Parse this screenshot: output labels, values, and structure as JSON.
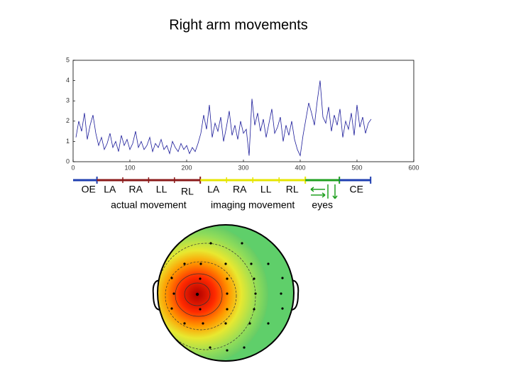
{
  "title": "Right arm movements",
  "chart_data": {
    "type": "line",
    "x": [
      5,
      10,
      15,
      20,
      25,
      30,
      35,
      40,
      45,
      50,
      55,
      60,
      65,
      70,
      75,
      80,
      85,
      90,
      95,
      100,
      105,
      110,
      115,
      120,
      125,
      130,
      135,
      140,
      145,
      150,
      155,
      160,
      165,
      170,
      175,
      180,
      185,
      190,
      195,
      200,
      205,
      210,
      215,
      220,
      225,
      230,
      235,
      240,
      245,
      250,
      255,
      260,
      265,
      270,
      275,
      280,
      285,
      290,
      295,
      300,
      305,
      310,
      315,
      320,
      325,
      330,
      335,
      340,
      345,
      350,
      355,
      360,
      365,
      370,
      375,
      380,
      385,
      390,
      395,
      400,
      405,
      410,
      415,
      420,
      425,
      430,
      435,
      440,
      445,
      450,
      455,
      460,
      465,
      470,
      475,
      480,
      485,
      490,
      495,
      500,
      505,
      510,
      515,
      520,
      525
    ],
    "series": [
      {
        "color": "#1a1a99",
        "values": [
          1.2,
          2.0,
          1.5,
          2.4,
          1.1,
          1.8,
          2.3,
          1.4,
          0.8,
          1.2,
          0.6,
          0.9,
          1.4,
          0.7,
          1.0,
          0.5,
          1.3,
          0.8,
          1.1,
          0.6,
          0.9,
          1.5,
          0.7,
          1.0,
          0.6,
          0.8,
          1.2,
          0.5,
          0.9,
          0.7,
          1.1,
          0.6,
          0.8,
          0.4,
          1.0,
          0.7,
          0.5,
          0.9,
          0.6,
          0.8,
          0.4,
          0.7,
          0.5,
          0.9,
          1.4,
          2.3,
          1.6,
          2.8,
          1.2,
          1.9,
          1.5,
          2.2,
          1.0,
          1.7,
          2.5,
          1.3,
          1.8,
          1.1,
          2.0,
          1.4,
          1.6,
          0.3,
          3.1,
          1.8,
          2.4,
          1.5,
          2.1,
          1.2,
          1.9,
          2.6,
          1.4,
          1.7,
          2.2,
          1.0,
          1.8,
          1.3,
          2.0,
          1.1,
          0.6,
          0.3,
          1.3,
          2.1,
          2.9,
          2.4,
          1.8,
          3.0,
          4.0,
          2.2,
          1.9,
          2.7,
          1.5,
          2.3,
          1.8,
          2.6,
          1.2,
          2.0,
          1.6,
          2.4,
          1.3,
          2.8,
          1.7,
          2.2,
          1.4,
          1.9,
          2.1
        ]
      }
    ],
    "xlim": [
      0,
      600
    ],
    "xticks": [
      0,
      100,
      200,
      300,
      400,
      500,
      600
    ],
    "ylim": [
      0,
      5
    ],
    "yticks": [
      0,
      1,
      2,
      3,
      4,
      5
    ]
  },
  "timeline": {
    "segments": [
      {
        "label": "OE",
        "color": "#1f3fb0",
        "start": 0,
        "end": 42
      },
      {
        "label": "actual movement",
        "color": "#8b1a1a",
        "start": 42,
        "end": 224,
        "parts": [
          "LA",
          "RA",
          "LL",
          "RL"
        ]
      },
      {
        "label": "imaging movement",
        "color": "#e6e600",
        "start": 224,
        "end": 409,
        "parts": [
          "LA",
          "RA",
          "LL",
          "RL"
        ]
      },
      {
        "label": "eyes",
        "color": "#20a020",
        "start": 409,
        "end": 469
      },
      {
        "label": "CE",
        "color": "#1f3fb0",
        "start": 469,
        "end": 524
      }
    ]
  }
}
